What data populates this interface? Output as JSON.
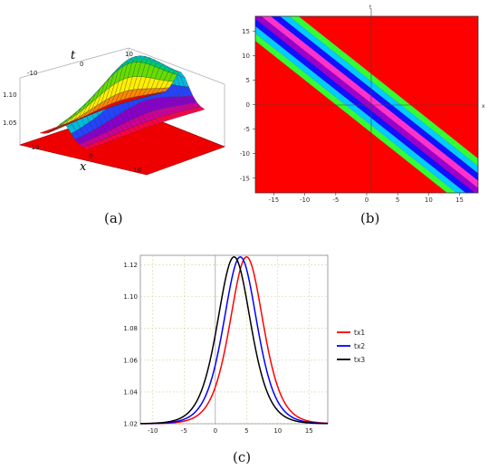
{
  "captions": {
    "a": "(a)",
    "b": "(b)",
    "c": "(c)"
  },
  "colors": {
    "red": "#ff0000",
    "green": "#33ff33",
    "cyan": "#00ccff",
    "blue": "#1111ff",
    "purple": "#9900cc",
    "magenta": "#ff33cc",
    "lime": "#66ff33",
    "black": "#000000"
  },
  "chart_data": [
    {
      "id": "a",
      "type": "surface",
      "xlabel": "x",
      "ylabel": "t",
      "xticks": [
        "-10",
        "0",
        "10"
      ],
      "yticks": [
        "-10",
        "0",
        "10"
      ],
      "zticks": [
        "1.05",
        "1.10"
      ],
      "peak_value": 1.125,
      "base_value": 1.02
    },
    {
      "id": "b",
      "type": "heatmap",
      "xlabel": "x",
      "ylabel": "t",
      "xlim": [
        -18,
        18
      ],
      "ylim": [
        -18,
        18
      ],
      "xticks": [
        -15,
        -10,
        -5,
        0,
        5,
        10,
        15
      ],
      "yticks": [
        -15,
        -10,
        -5,
        0,
        5,
        10,
        15
      ],
      "band_offsets": [
        -5,
        -3.5,
        -2,
        -0.5,
        1,
        2.5,
        4,
        5.5
      ],
      "band_colors": [
        "#33ff33",
        "#00ccff",
        "#1111ff",
        "#9900cc",
        "#ff33cc",
        "#1111ff",
        "#00ccff",
        "#33ff33"
      ],
      "background": "#ff0000"
    },
    {
      "id": "c",
      "type": "line",
      "xlim": [
        -12,
        18
      ],
      "ylim": [
        1.02,
        1.126
      ],
      "xticks": [
        -10,
        -5,
        0,
        5,
        10,
        15
      ],
      "yticks": [
        1.02,
        1.04,
        1.06,
        1.08,
        1.1,
        1.12
      ],
      "grid": true,
      "legend_position": "right",
      "series": [
        {
          "name": "tx1",
          "color": "#ff0000",
          "peak_x": 5.0,
          "peak_y": 1.125
        },
        {
          "name": "tx2",
          "color": "#0000ff",
          "peak_x": 4.0,
          "peak_y": 1.125
        },
        {
          "name": "tx3",
          "color": "#000000",
          "peak_x": 3.0,
          "peak_y": 1.125
        }
      ],
      "base_y": 1.02
    }
  ]
}
